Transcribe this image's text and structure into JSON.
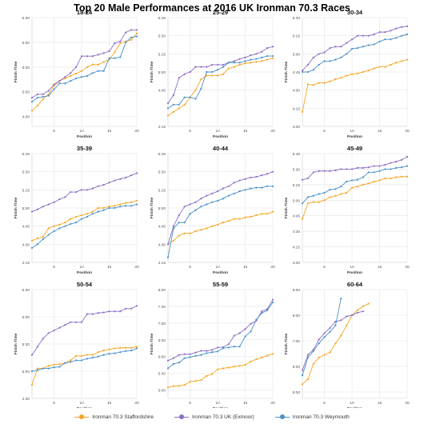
{
  "title": "Top 20 Male Performances at 2016 UK Ironman 70.3 Races",
  "legend": [
    {
      "name": "Ironman 70.3 Staffordshire",
      "color": "#f5a623"
    },
    {
      "name": "Ironman 70.3 UK (Exmoor)",
      "color": "#8e6dc4"
    },
    {
      "name": "Ironman 70.3 Weymouth",
      "color": "#4a90c9"
    }
  ],
  "chart_data": [
    {
      "type": "line",
      "title": "18-24",
      "xlabel": "Position",
      "ylabel": "Finish Time",
      "yticks": [
        "4:30",
        "5:00",
        "5:30",
        "6:00",
        "6:30"
      ],
      "ylim": [
        4.3,
        6.5
      ],
      "xticks": [
        5,
        10,
        15,
        20
      ],
      "xlim": [
        1,
        20
      ],
      "series": [
        {
          "name": "Ironman 70.3 Staffordshire",
          "values": [
            4.62,
            4.72,
            4.85,
            4.95,
            5.12,
            5.22,
            5.27,
            5.32,
            5.37,
            5.42,
            5.5,
            5.55,
            5.55,
            5.6,
            5.65,
            5.8,
            5.98,
            6.02,
            6.05,
            6.18
          ]
        },
        {
          "name": "Ironman 70.3 UK (Exmoor)",
          "values": [
            4.88,
            4.95,
            4.95,
            5.02,
            5.15,
            5.22,
            5.3,
            5.38,
            5.5,
            5.72,
            5.72,
            5.72,
            5.75,
            5.78,
            5.82,
            5.98,
            6.02,
            6.2,
            6.25,
            6.25
          ]
        },
        {
          "name": "Ironman 70.3 Weymouth",
          "values": [
            4.8,
            4.88,
            4.9,
            4.92,
            5.05,
            5.17,
            5.17,
            5.22,
            5.27,
            5.3,
            5.32,
            5.38,
            5.42,
            5.42,
            5.68,
            5.68,
            5.7,
            6.0,
            6.1,
            6.12
          ]
        }
      ]
    },
    {
      "type": "line",
      "title": "25-29",
      "xlabel": "Position",
      "ylabel": "Finish Time",
      "yticks": [
        "4:15",
        "4:45",
        "5:00",
        "5:15",
        "5:30",
        "5:45"
      ],
      "ylim": [
        4.25,
        5.75
      ],
      "xticks": [
        5,
        10,
        15,
        20
      ],
      "xlim": [
        1,
        20
      ],
      "series": [
        {
          "name": "Ironman 70.3 Staffordshire",
          "values": [
            4.4,
            4.45,
            4.5,
            4.55,
            4.65,
            4.75,
            4.9,
            4.95,
            4.95,
            4.95,
            4.97,
            5.05,
            5.07,
            5.1,
            5.12,
            5.13,
            5.14,
            5.15,
            5.17,
            5.19
          ]
        },
        {
          "name": "Ironman 70.3 UK (Exmoor)",
          "values": [
            4.57,
            4.68,
            4.92,
            4.97,
            5.0,
            5.07,
            5.07,
            5.07,
            5.1,
            5.1,
            5.1,
            5.13,
            5.15,
            5.18,
            5.2,
            5.23,
            5.25,
            5.28,
            5.33,
            5.35
          ]
        },
        {
          "name": "Ironman 70.3 Weymouth",
          "values": [
            4.5,
            4.55,
            4.55,
            4.65,
            4.65,
            4.63,
            4.77,
            5.0,
            5.0,
            5.03,
            5.07,
            5.13,
            5.13,
            5.13,
            5.15,
            5.17,
            5.18,
            5.2,
            5.22,
            5.22
          ]
        }
      ]
    },
    {
      "type": "line",
      "title": "30-34",
      "xlabel": "Position",
      "ylabel": "Finish Time",
      "yticks": [
        "4:00",
        "4:15",
        "4:30",
        "4:45",
        "5:00",
        "5:15",
        "5:30"
      ],
      "ylim": [
        4.0,
        5.5
      ],
      "xticks": [
        5,
        10,
        15,
        20
      ],
      "xlim": [
        1,
        20
      ],
      "series": [
        {
          "name": "Ironman 70.3 Staffordshire",
          "values": [
            4.2,
            4.58,
            4.57,
            4.6,
            4.6,
            4.62,
            4.65,
            4.67,
            4.7,
            4.72,
            4.73,
            4.75,
            4.77,
            4.8,
            4.82,
            4.82,
            4.85,
            4.88,
            4.9,
            4.92
          ]
        },
        {
          "name": "Ironman 70.3 UK (Exmoor)",
          "values": [
            4.77,
            4.85,
            4.95,
            5.0,
            5.02,
            5.08,
            5.1,
            5.1,
            5.15,
            5.2,
            5.25,
            5.25,
            5.25,
            5.27,
            5.3,
            5.3,
            5.32,
            5.35,
            5.37,
            5.38
          ]
        },
        {
          "name": "Ironman 70.3 Weymouth",
          "values": [
            4.75,
            4.75,
            4.78,
            4.85,
            4.9,
            4.9,
            4.92,
            4.95,
            5.0,
            5.07,
            5.08,
            5.1,
            5.12,
            5.13,
            5.17,
            5.2,
            5.2,
            5.22,
            5.25,
            5.27
          ]
        }
      ]
    },
    {
      "type": "line",
      "title": "35-39",
      "xlabel": "Position",
      "ylabel": "Finish Time",
      "yticks": [
        "4:15",
        "4:30",
        "4:45",
        "5:00",
        "5:15",
        "5:30",
        "5:45"
      ],
      "ylim": [
        4.25,
        5.75
      ],
      "xticks": [
        5,
        10,
        15,
        20
      ],
      "xlim": [
        1,
        20
      ],
      "series": [
        {
          "name": "Ironman 70.3 Staffordshire",
          "values": [
            4.55,
            4.58,
            4.6,
            4.72,
            4.75,
            4.77,
            4.8,
            4.85,
            4.88,
            4.9,
            4.92,
            4.95,
            5.0,
            5.0,
            5.02,
            5.03,
            5.05,
            5.07,
            5.08,
            5.1
          ]
        },
        {
          "name": "Ironman 70.3 UK (Exmoor)",
          "values": [
            4.95,
            4.98,
            5.02,
            5.05,
            5.08,
            5.12,
            5.15,
            5.22,
            5.22,
            5.25,
            5.25,
            5.27,
            5.3,
            5.32,
            5.35,
            5.38,
            5.4,
            5.42,
            5.45,
            5.48
          ]
        },
        {
          "name": "Ironman 70.3 Weymouth",
          "values": [
            4.45,
            4.5,
            4.57,
            4.63,
            4.68,
            4.72,
            4.75,
            4.78,
            4.8,
            4.85,
            4.88,
            4.92,
            4.95,
            4.97,
            5.0,
            5.0,
            5.02,
            5.03,
            5.03,
            5.05
          ]
        }
      ]
    },
    {
      "type": "line",
      "title": "40-44",
      "xlabel": "Position",
      "ylabel": "Finish Time",
      "yticks": [
        "4:15",
        "4:30",
        "4:45",
        "5:00",
        "5:15",
        "5:30",
        "5:45"
      ],
      "ylim": [
        4.25,
        5.75
      ],
      "xticks": [
        5,
        10,
        15,
        20
      ],
      "xlim": [
        1,
        20
      ],
      "series": [
        {
          "name": "Ironman 70.3 Staffordshire",
          "values": [
            4.5,
            4.55,
            4.62,
            4.65,
            4.65,
            4.68,
            4.7,
            4.72,
            4.75,
            4.77,
            4.8,
            4.82,
            4.85,
            4.85,
            4.87,
            4.88,
            4.9,
            4.92,
            4.92,
            4.95
          ]
        },
        {
          "name": "Ironman 70.3 UK (Exmoor)",
          "values": [
            4.5,
            4.75,
            4.9,
            5.02,
            5.05,
            5.08,
            5.13,
            5.17,
            5.2,
            5.23,
            5.27,
            5.3,
            5.35,
            5.38,
            5.4,
            5.42,
            5.43,
            5.45,
            5.47,
            5.5
          ]
        },
        {
          "name": "Ironman 70.3 Weymouth",
          "values": [
            4.32,
            4.72,
            4.8,
            4.8,
            4.92,
            4.97,
            5.02,
            5.05,
            5.08,
            5.1,
            5.13,
            5.17,
            5.2,
            5.23,
            5.25,
            5.27,
            5.28,
            5.28,
            5.3,
            5.3
          ]
        }
      ]
    },
    {
      "type": "line",
      "title": "45-49",
      "xlabel": "Position",
      "ylabel": "Finish Time",
      "yticks": [
        "4:00",
        "4:15",
        "4:30",
        "4:45",
        "5:00",
        "5:15",
        "5:30",
        "5:45"
      ],
      "ylim": [
        4.0,
        5.75
      ],
      "xticks": [
        5,
        10,
        15,
        20
      ],
      "xlim": [
        1,
        20
      ],
      "series": [
        {
          "name": "Ironman 70.3 Staffordshire",
          "values": [
            4.7,
            4.95,
            4.97,
            4.97,
            5.0,
            5.05,
            5.07,
            5.1,
            5.12,
            5.2,
            5.22,
            5.25,
            5.27,
            5.3,
            5.32,
            5.35,
            5.35,
            5.37,
            5.38,
            5.38
          ]
        },
        {
          "name": "Ironman 70.3 UK (Exmoor)",
          "values": [
            5.33,
            5.35,
            5.45,
            5.47,
            5.47,
            5.47,
            5.48,
            5.5,
            5.5,
            5.5,
            5.52,
            5.52,
            5.53,
            5.55,
            5.55,
            5.57,
            5.6,
            5.62,
            5.65,
            5.7
          ]
        },
        {
          "name": "Ironman 70.3 Weymouth",
          "values": [
            4.95,
            5.05,
            5.07,
            5.1,
            5.12,
            5.17,
            5.18,
            5.22,
            5.3,
            5.32,
            5.33,
            5.37,
            5.45,
            5.45,
            5.47,
            5.5,
            5.5,
            5.52,
            5.53,
            5.55
          ]
        }
      ]
    },
    {
      "type": "line",
      "title": "50-54",
      "xlabel": "Position",
      "ylabel": "Finish Time",
      "yticks": [
        "4:30",
        "5:00",
        "5:30",
        "6:00",
        "6:30"
      ],
      "ylim": [
        4.5,
        6.5
      ],
      "xticks": [
        5,
        10,
        15,
        20
      ],
      "xlim": [
        1,
        20
      ],
      "series": [
        {
          "name": "Ironman 70.3 Staffordshire",
          "values": [
            4.75,
            5.05,
            5.05,
            5.1,
            5.12,
            5.13,
            5.15,
            5.2,
            5.28,
            5.28,
            5.3,
            5.3,
            5.35,
            5.38,
            5.4,
            5.42,
            5.43,
            5.43,
            5.43,
            5.45
          ]
        },
        {
          "name": "Ironman 70.3 UK (Exmoor)",
          "values": [
            5.3,
            5.45,
            5.6,
            5.7,
            5.75,
            5.8,
            5.85,
            5.9,
            5.9,
            5.9,
            6.05,
            6.05,
            6.07,
            6.08,
            6.1,
            6.1,
            6.1,
            6.15,
            6.15,
            6.2
          ]
        },
        {
          "name": "Ironman 70.3 Weymouth",
          "values": [
            5.0,
            5.02,
            5.05,
            5.05,
            5.07,
            5.08,
            5.15,
            5.17,
            5.2,
            5.2,
            5.23,
            5.25,
            5.27,
            5.3,
            5.32,
            5.33,
            5.35,
            5.37,
            5.38,
            5.42
          ]
        }
      ]
    },
    {
      "type": "line",
      "title": "55-59",
      "xlabel": "Position",
      "ylabel": "Finish Time",
      "yticks": [
        "5:00",
        "5:30",
        "6:00",
        "6:30",
        "7:00",
        "7:30",
        "8:00"
      ],
      "ylim": [
        4.75,
        8.0
      ],
      "xticks": [
        5,
        10,
        15,
        20
      ],
      "xlim": [
        1,
        20
      ],
      "series": [
        {
          "name": "Ironman 70.3 Staffordshire",
          "values": [
            5.08,
            5.12,
            5.12,
            5.15,
            5.25,
            5.27,
            5.3,
            5.42,
            5.48,
            5.62,
            5.65,
            5.67,
            5.7,
            5.72,
            5.75,
            5.85,
            5.92,
            5.97,
            6.03,
            6.08
          ]
        },
        {
          "name": "Ironman 70.3 UK (Exmoor)",
          "values": [
            5.88,
            5.95,
            6.05,
            6.07,
            6.07,
            6.12,
            6.17,
            6.17,
            6.2,
            6.27,
            6.28,
            6.37,
            6.62,
            6.7,
            6.82,
            6.98,
            7.07,
            7.35,
            7.42,
            7.7
          ]
        },
        {
          "name": "Ironman 70.3 Weymouth",
          "values": [
            5.65,
            5.78,
            5.82,
            5.95,
            5.98,
            6.02,
            6.05,
            6.1,
            6.13,
            6.15,
            6.25,
            6.27,
            6.3,
            6.3,
            6.6,
            6.75,
            7.1,
            7.3,
            7.38,
            7.62
          ]
        }
      ]
    },
    {
      "type": "line",
      "title": "60-64",
      "xlabel": "Position",
      "ylabel": "Finish Time",
      "yticks": [
        "5:00",
        "6:00",
        "7:00",
        "8:00",
        "9:00"
      ],
      "ylim": [
        4.75,
        9.0
      ],
      "xticks": [
        5,
        10,
        15,
        20
      ],
      "xlim": [
        1,
        20
      ],
      "series": [
        {
          "name": "Ironman 70.3 Staffordshire",
          "values": [
            5.3,
            5.5,
            6.1,
            6.35,
            6.45,
            6.55,
            6.9,
            7.2,
            7.6,
            8.0,
            8.2,
            8.35,
            8.45
          ]
        },
        {
          "name": "Ironman 70.3 UK (Exmoor)",
          "values": [
            5.85,
            6.45,
            6.65,
            7.05,
            7.3,
            7.5,
            7.75,
            7.8,
            7.95,
            8.0,
            8.1,
            8.15
          ]
        },
        {
          "name": "Ironman 70.3 Weymouth",
          "values": [
            5.65,
            6.35,
            6.6,
            6.9,
            7.15,
            7.35,
            7.6,
            8.65
          ]
        }
      ]
    }
  ]
}
